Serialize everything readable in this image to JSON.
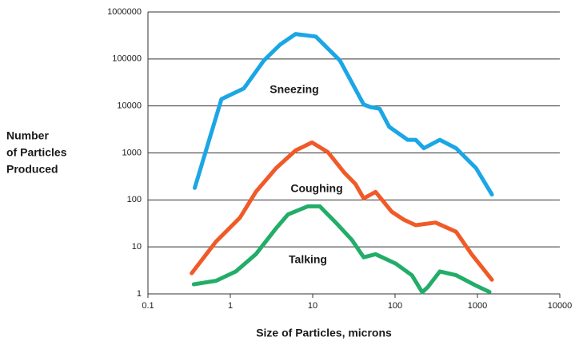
{
  "chart_data": {
    "type": "line",
    "xlabel": "Size of Particles, microns",
    "ylabel": [
      "Number",
      "of Particles",
      "Produced"
    ],
    "xscale": "log",
    "yscale": "log",
    "xlim": [
      0.1,
      10000
    ],
    "ylim": [
      1,
      1000000
    ],
    "xticks": [
      0.1,
      1,
      10,
      100,
      1000,
      10000
    ],
    "yticks": [
      1,
      10,
      100,
      1000,
      10000,
      100000,
      1000000
    ],
    "grid": true,
    "series": [
      {
        "name": "Sneezing",
        "color": "#1ba6e5",
        "x": [
          0.37,
          0.78,
          1.46,
          2.56,
          4.0,
          6.2,
          10.9,
          21.4,
          41.6,
          50,
          65,
          85,
          142,
          178,
          224,
          350,
          550,
          960,
          1500
        ],
        "values": [
          180,
          14000,
          23500,
          93000,
          200000,
          340000,
          300000,
          93000,
          10700,
          9500,
          8700,
          3600,
          1900,
          1900,
          1260,
          1900,
          1260,
          475,
          130
        ]
      },
      {
        "name": "Coughing",
        "color": "#f05a28",
        "x": [
          0.34,
          0.67,
          1.31,
          2.04,
          3.6,
          6.2,
          9.8,
          15.3,
          23.9,
          33,
          41.6,
          58,
          91,
          128,
          178,
          310,
          550,
          850,
          1500
        ],
        "values": [
          2.76,
          13,
          42,
          148,
          475,
          1130,
          1670,
          1040,
          390,
          218,
          108,
          148,
          56,
          38,
          29,
          33,
          21,
          7,
          2
        ]
      },
      {
        "name": "Talking",
        "color": "#22ad68",
        "x": [
          0.36,
          0.67,
          1.17,
          2.04,
          3.6,
          5,
          8.7,
          12.2,
          19.1,
          30,
          41.6,
          58,
          102,
          160,
          214,
          250,
          350,
          550,
          960,
          1400
        ],
        "values": [
          1.6,
          1.9,
          3,
          7,
          25,
          49,
          73,
          73,
          33,
          14,
          6,
          7,
          4.4,
          2.5,
          1.08,
          1.4,
          3,
          2.5,
          1.5,
          1.1
        ]
      }
    ]
  }
}
